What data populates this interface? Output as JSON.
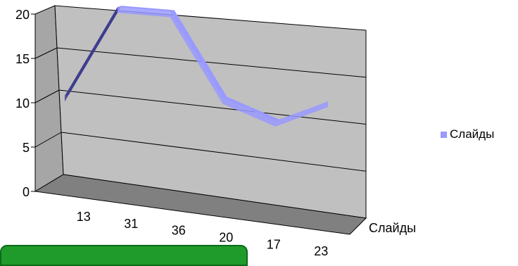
{
  "chart_data": {
    "type": "line",
    "style": "3d",
    "categories": [
      "13",
      "31",
      "36",
      "20",
      "17",
      "23"
    ],
    "series": [
      {
        "name": "Слайды",
        "values": [
          8,
          20,
          20,
          10,
          8,
          11
        ]
      }
    ],
    "depth_axis_label": "Слайды",
    "ylim": [
      0,
      20
    ],
    "yticks": [
      "0",
      "5",
      "10",
      "15",
      "20"
    ],
    "grid": true,
    "legend_position": "right",
    "colors": {
      "series": "#9999ff",
      "series_dark": "#3d3d8f",
      "back_wall": "#c0c0c0",
      "side_wall": "#a6a6a6",
      "floor": "#808080"
    }
  },
  "legend": {
    "label": "Слайды"
  }
}
